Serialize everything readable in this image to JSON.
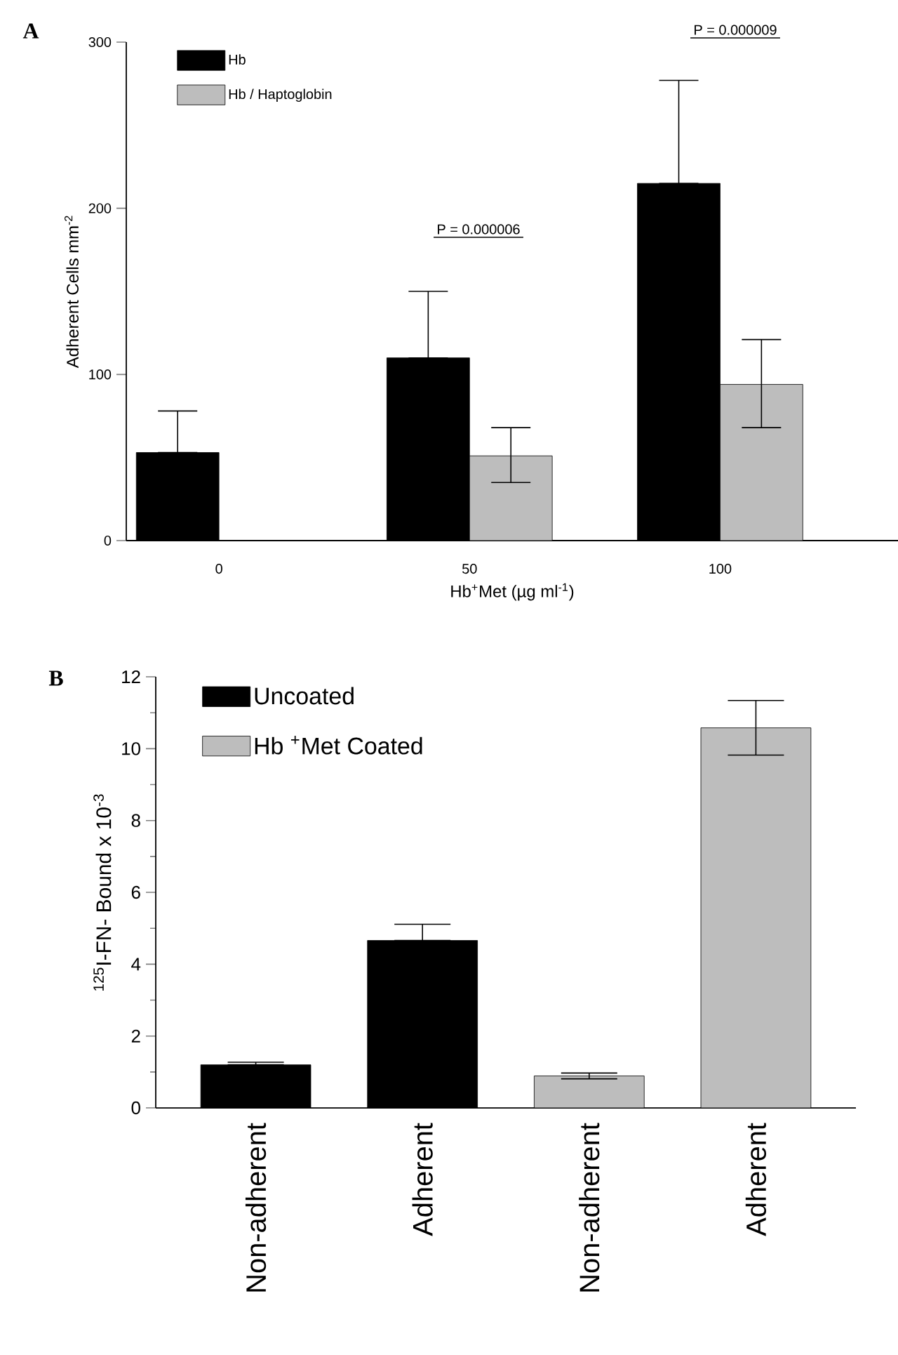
{
  "chart_data": [
    {
      "type": "bar",
      "title": "A",
      "xlabel": "Hb$^{+}$Met (µg ml$^{-1}$)",
      "ylabel": "Adherent Cells mm$^{-2}$",
      "categories": [
        "0",
        "50",
        "100"
      ],
      "series": [
        {
          "name": "Hb",
          "color": "#000000",
          "values": [
            53,
            110,
            215
          ],
          "errors": [
            [
              53,
              78
            ],
            [
              110,
              150
            ],
            [
              215,
              277
            ]
          ]
        },
        {
          "name": "Hb / Haptoglobin",
          "color": "#bdbdbd",
          "values": [
            null,
            51,
            94
          ],
          "errors": [
            null,
            [
              35,
              68
            ],
            [
              68,
              121
            ]
          ]
        }
      ],
      "ylim": [
        0,
        300
      ],
      "yticks": [
        0,
        100,
        200,
        300
      ],
      "legend": "top left",
      "annotations": [
        "P = 0.000006",
        "P = 0.000009"
      ]
    },
    {
      "type": "bar",
      "title": "B",
      "ylabel": "$^{125}$I-FN- Bound x 10$^{-3}$",
      "categories": [
        "Non-adherent",
        "Adherent",
        "Non-adherent",
        "Adherent"
      ],
      "series": [
        {
          "name": "Uncoated",
          "color": "#000000",
          "values": [
            1.2,
            4.66,
            null,
            null
          ],
          "errors": [
            [
              1.2,
              1.27
            ],
            [
              4.66,
              5.11
            ],
            null,
            null
          ]
        },
        {
          "name": "Hb $^{+}$Met Coated",
          "color": "#bdbdbd",
          "values": [
            null,
            null,
            0.89,
            10.58
          ],
          "errors": [
            null,
            null,
            0.08,
            0.76
          ]
        }
      ],
      "ylim": [
        0,
        12
      ],
      "yticks": [
        0,
        {
          "value": 1,
          "label": null
        },
        2,
        {
          "value": 3,
          "label": null
        },
        4,
        {
          "value": 5,
          "label": null
        },
        6,
        {
          "value": 7,
          "label": null
        },
        8,
        {
          "value": 9,
          "label": null
        },
        10,
        {
          "value": 11,
          "label": null
        },
        12
      ],
      "legend": "top left"
    }
  ]
}
